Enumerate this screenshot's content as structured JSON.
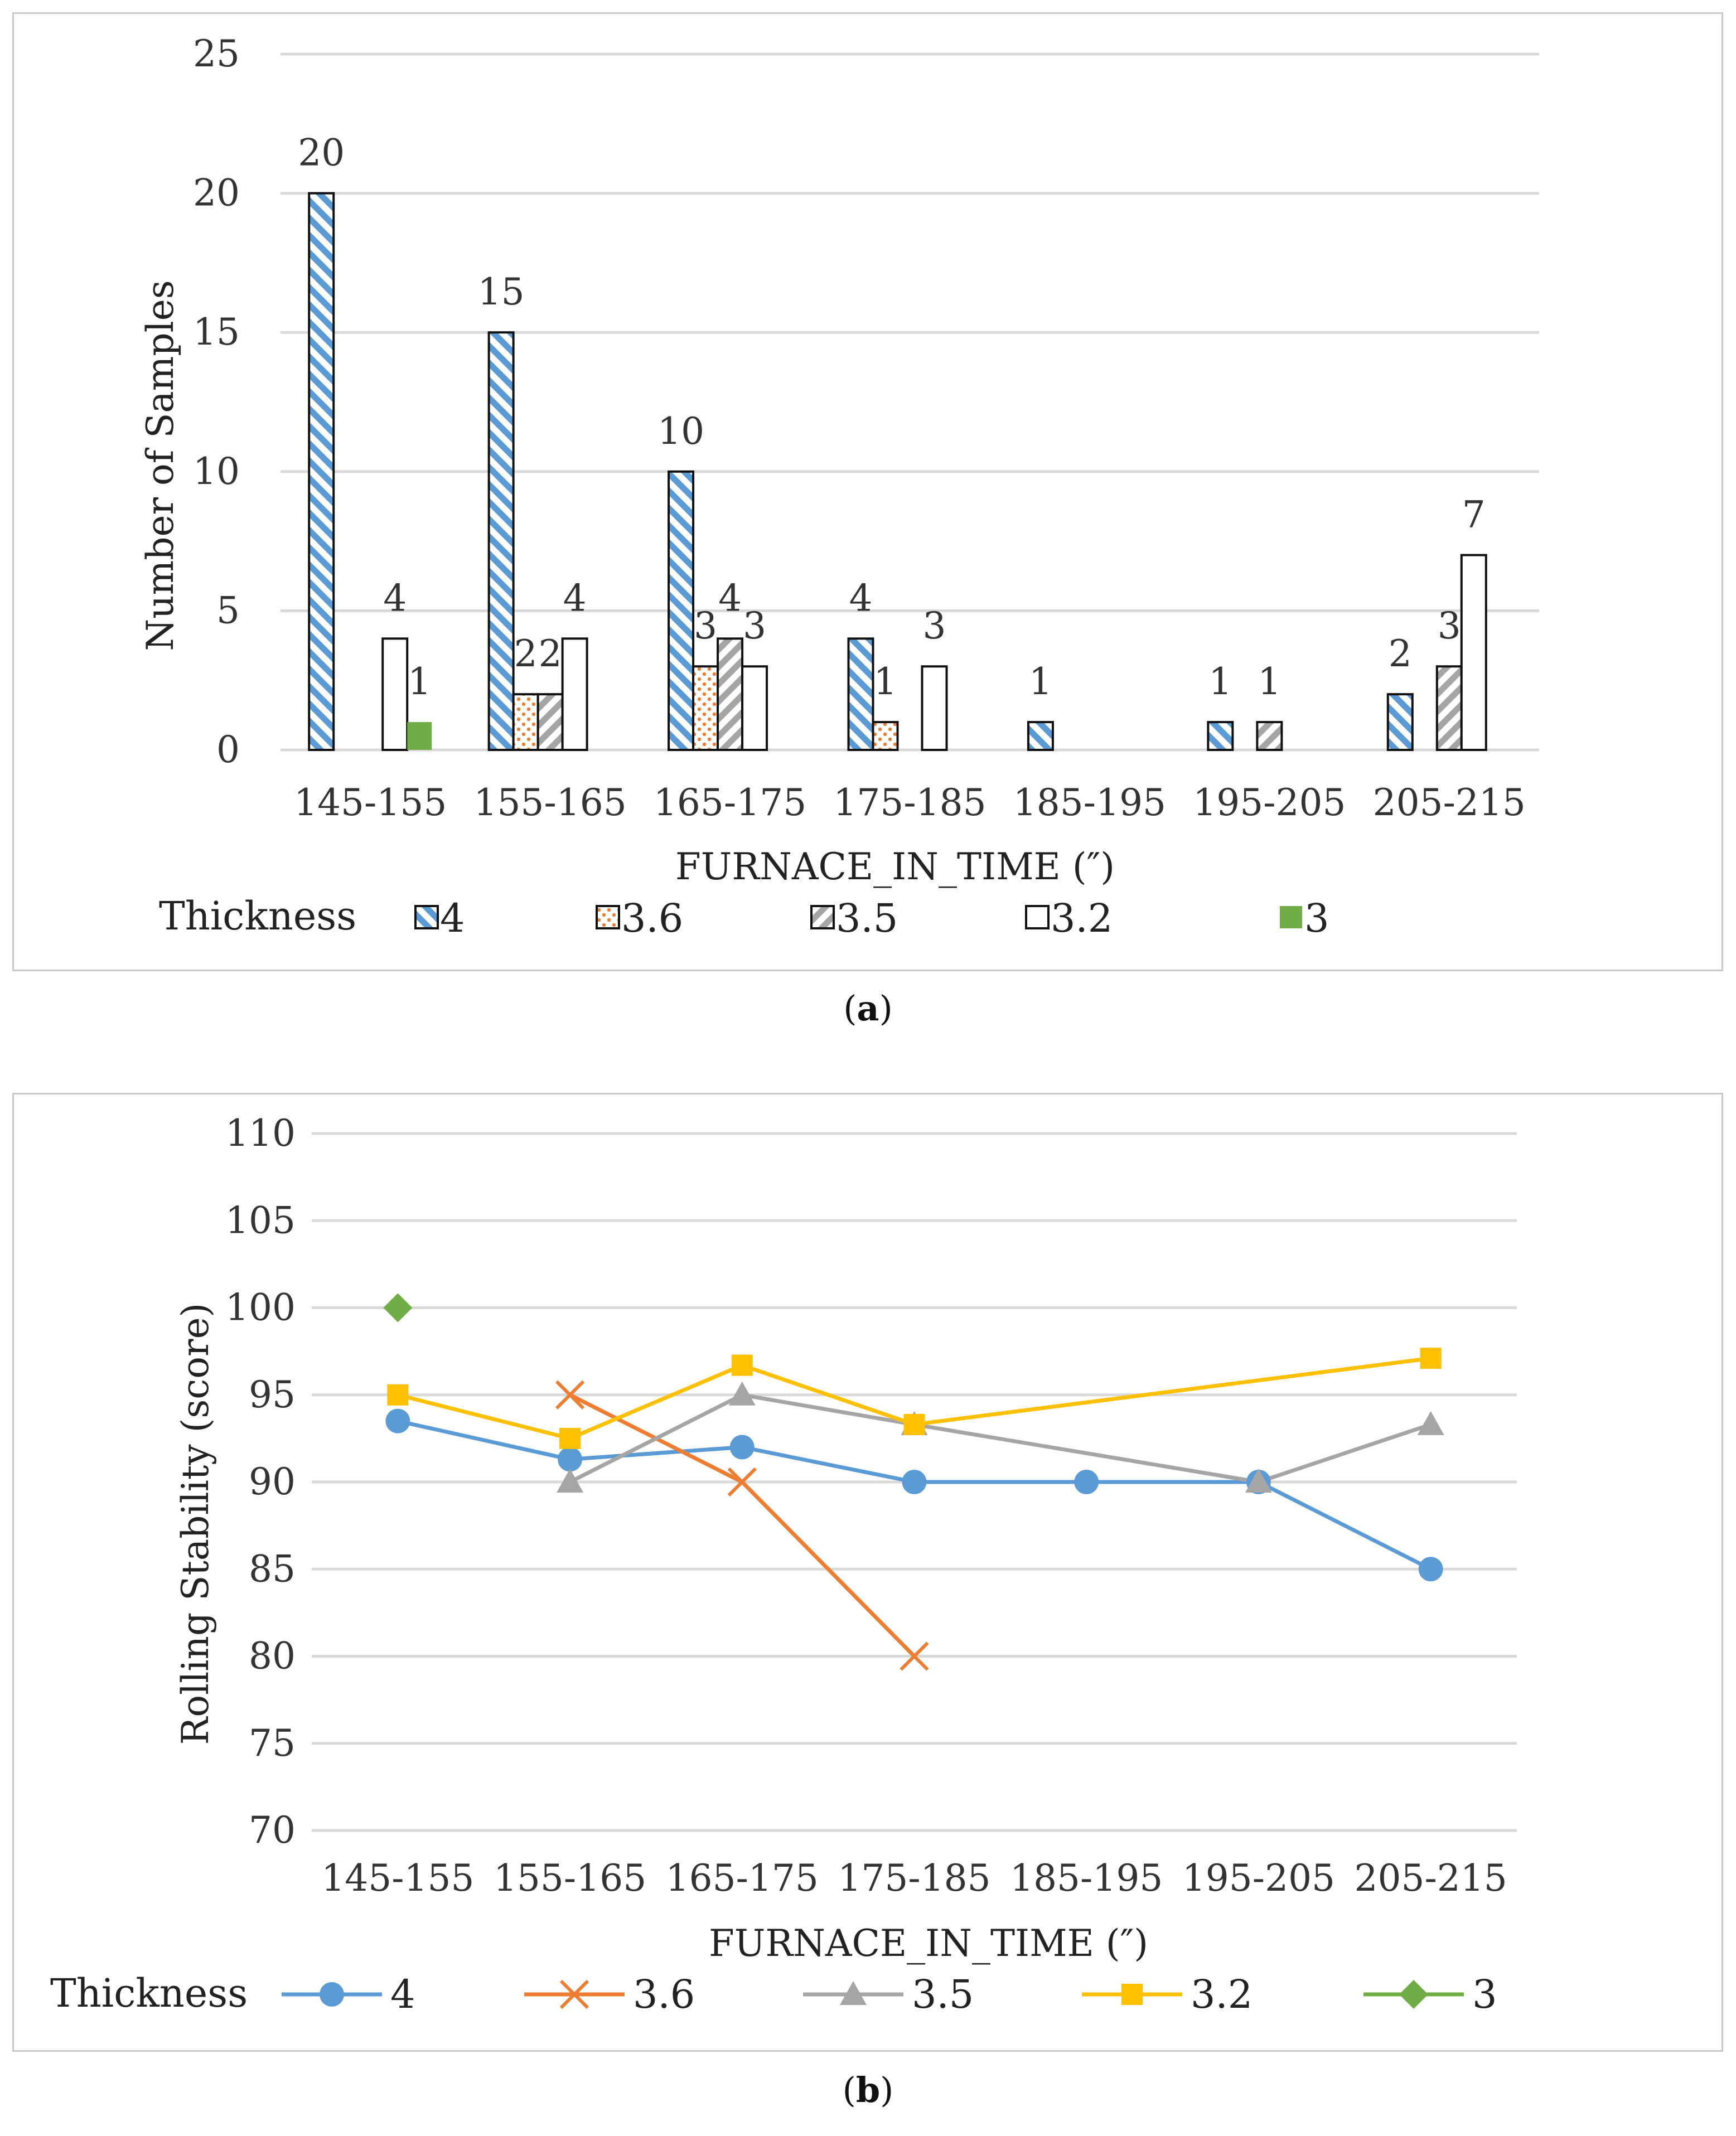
{
  "captions": {
    "a_letter": "a",
    "b_letter": "b"
  },
  "chart_data": [
    {
      "type": "bar",
      "categories": [
        "145-155",
        "155-165",
        "165-175",
        "175-185",
        "185-195",
        "195-205",
        "205-215"
      ],
      "xlabel": "FURNACE_IN_TIME (″)",
      "ylabel": "Number of Samples",
      "ylim": [
        0,
        25
      ],
      "yticks": [
        0,
        5,
        10,
        15,
        20,
        25
      ],
      "grid": true,
      "legend_title": "Thickness",
      "legend_position": "bottom",
      "series": [
        {
          "name": "4",
          "values": [
            20,
            15,
            10,
            4,
            1,
            1,
            2
          ],
          "color": "#5b9bd5",
          "pattern": "diagonal"
        },
        {
          "name": "3.6",
          "values": [
            null,
            2,
            3,
            1,
            null,
            null,
            null
          ],
          "color": "#ed7d31",
          "pattern": "dots"
        },
        {
          "name": "3.5",
          "values": [
            null,
            2,
            4,
            null,
            null,
            1,
            3
          ],
          "color": "#a5a5a5",
          "pattern": "diagonal-reverse"
        },
        {
          "name": "3.2",
          "values": [
            4,
            4,
            3,
            3,
            null,
            null,
            7
          ],
          "color": "#ffffff",
          "pattern": "none"
        },
        {
          "name": "3",
          "values": [
            1,
            null,
            null,
            null,
            null,
            null,
            null
          ],
          "color": "#70ad47",
          "pattern": "solid"
        }
      ]
    },
    {
      "type": "line",
      "categories": [
        "145-155",
        "155-165",
        "165-175",
        "175-185",
        "185-195",
        "195-205",
        "205-215"
      ],
      "xlabel": "FURNACE_IN_TIME (″)",
      "ylabel": "Rolling Stability (score)",
      "ylim": [
        70,
        110
      ],
      "yticks": [
        70,
        75,
        80,
        85,
        90,
        95,
        100,
        105,
        110
      ],
      "grid": true,
      "legend_title": "Thickness",
      "legend_position": "bottom",
      "series": [
        {
          "name": "4",
          "values": [
            93.5,
            91.3,
            92,
            90,
            90,
            90,
            85
          ],
          "color": "#5b9bd5",
          "marker": "circle"
        },
        {
          "name": "3.6",
          "values": [
            null,
            95,
            90,
            80,
            null,
            null,
            null
          ],
          "color": "#ed7d31",
          "marker": "x"
        },
        {
          "name": "3.5",
          "values": [
            null,
            90,
            95,
            93.3,
            null,
            90,
            93.3
          ],
          "color": "#a5a5a5",
          "marker": "triangle"
        },
        {
          "name": "3.2",
          "values": [
            95,
            92.5,
            96.7,
            93.3,
            null,
            null,
            97.1
          ],
          "color": "#ffc000",
          "marker": "square"
        },
        {
          "name": "3",
          "values": [
            100,
            null,
            null,
            null,
            null,
            null,
            null
          ],
          "color": "#70ad47",
          "marker": "diamond"
        }
      ]
    }
  ]
}
